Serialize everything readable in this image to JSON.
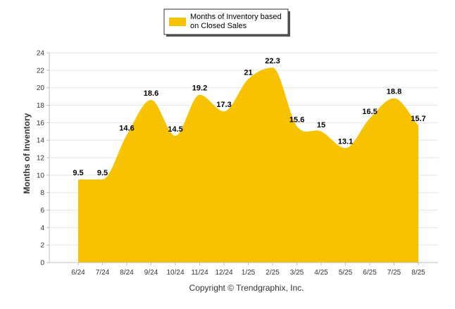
{
  "chart_data": {
    "type": "area",
    "categories": [
      "6/24",
      "7/24",
      "8/24",
      "9/24",
      "10/24",
      "11/24",
      "12/24",
      "1/25",
      "2/25",
      "3/25",
      "4/25",
      "5/25",
      "6/25",
      "7/25",
      "8/25"
    ],
    "series": [
      {
        "name": "Months of Inventory based on Closed Sales",
        "values": [
          9.5,
          9.5,
          14.6,
          18.6,
          14.5,
          19.2,
          17.3,
          21,
          22.3,
          15.6,
          15,
          13.1,
          16.5,
          18.8,
          15.7
        ],
        "data_labels": [
          "9.5",
          "9.5",
          "14.6",
          "18.6",
          "14.5",
          "19.2",
          "17.3",
          "21",
          "22.3",
          "15.6",
          "15",
          "13.1",
          "16.5",
          "18.8",
          "15.7"
        ],
        "color": "#F7C200"
      }
    ],
    "ylabel": "Months of Inventory",
    "xlabel": "",
    "ylim": [
      0,
      24
    ],
    "yticks": [
      0,
      2,
      4,
      6,
      8,
      10,
      12,
      14,
      16,
      18,
      20,
      22,
      24
    ],
    "grid": true,
    "legend_position": "top-center"
  },
  "legend": {
    "line1": "Months of Inventory based",
    "line2": "on Closed Sales"
  },
  "footer": {
    "copyright": "Copyright © Trendgraphix, Inc."
  },
  "colors": {
    "area": "#F7C200",
    "grid": "#E6E6E6",
    "axis": "#BFBFBF"
  }
}
